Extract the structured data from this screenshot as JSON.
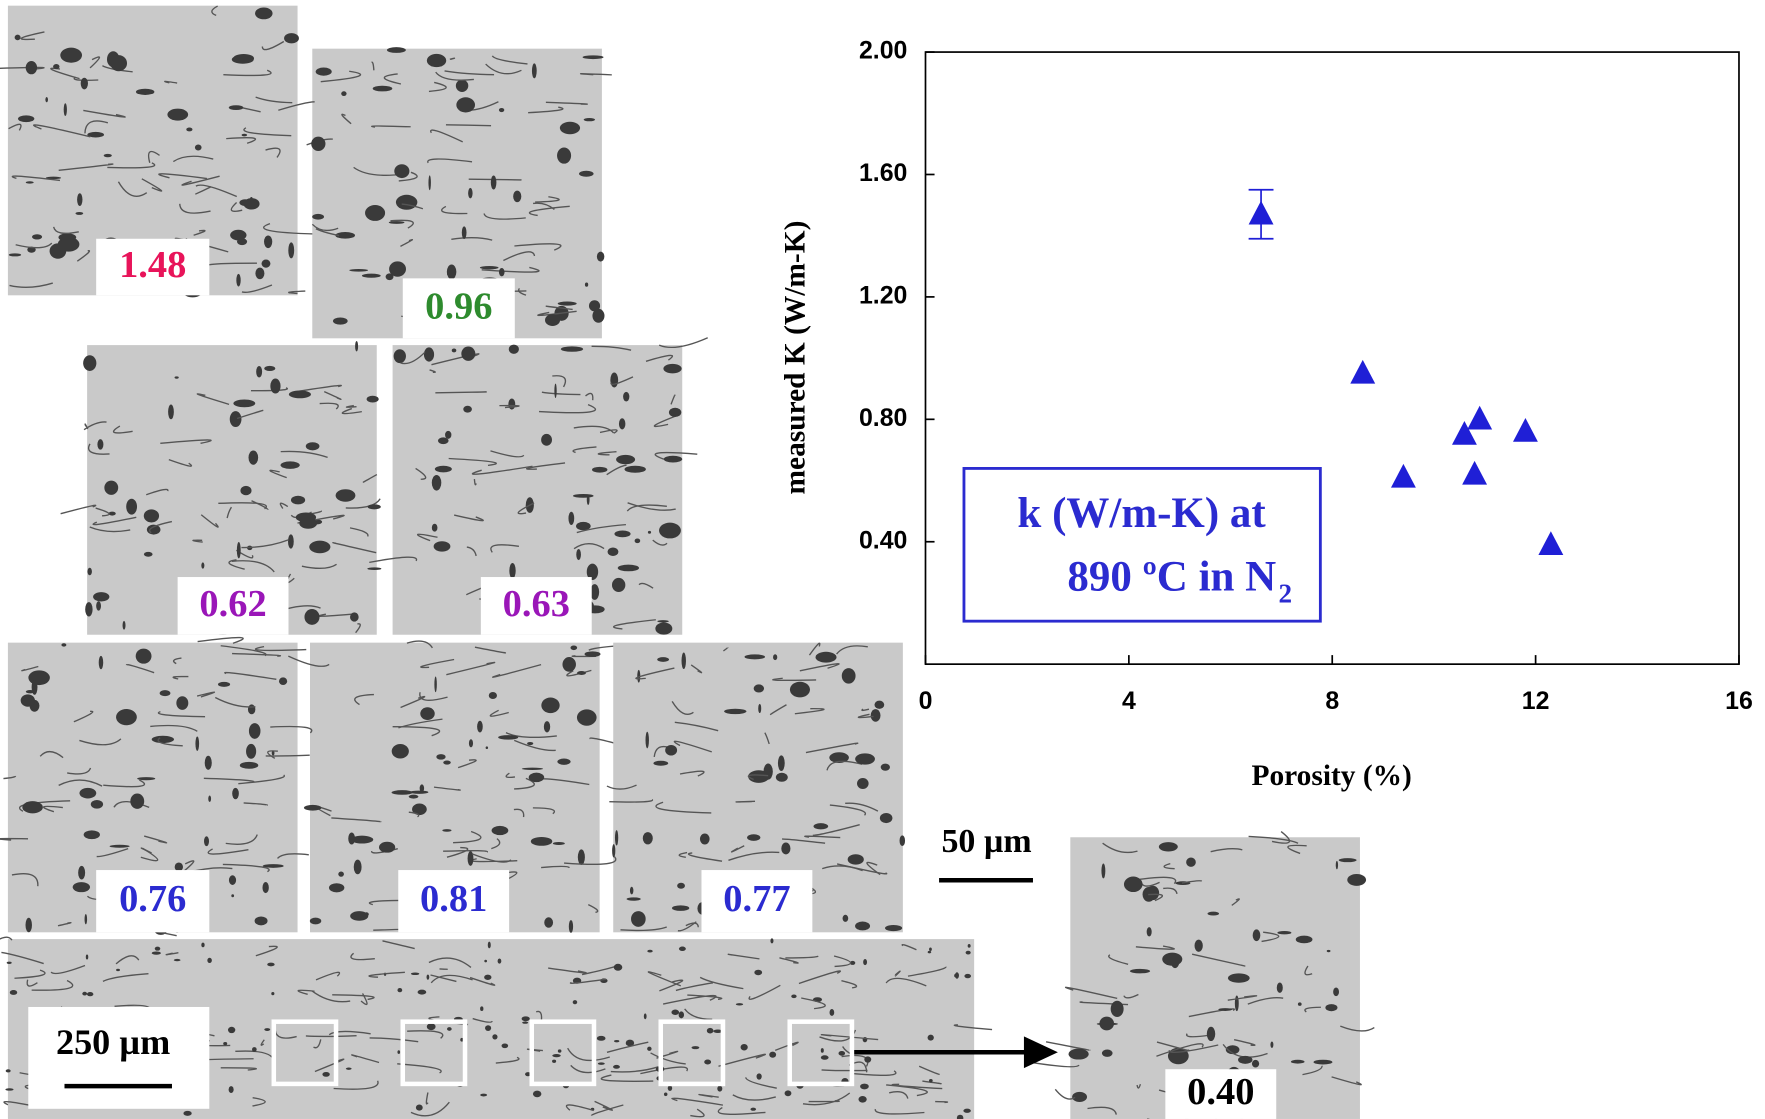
{
  "chart_data": {
    "type": "scatter",
    "ylabel": "measured K (W/m-K)",
    "xlabel": "Porosity (%)",
    "x": [
      6.6,
      8.6,
      9.4,
      10.6,
      10.9,
      10.8,
      11.8,
      12.3
    ],
    "values": [
      1.47,
      0.95,
      0.61,
      0.75,
      0.8,
      0.62,
      0.76,
      0.39
    ],
    "errors": [
      0.08,
      null,
      null,
      null,
      null,
      null,
      null,
      null
    ],
    "color": "#1f1fd6",
    "xlim": [
      0,
      16
    ],
    "xticks": [
      0,
      4,
      8,
      12,
      16
    ],
    "ylim": [
      0,
      2
    ],
    "yticks": [
      {
        "value": 0.4,
        "label": "0.40"
      },
      {
        "value": 0.8,
        "label": "0.80"
      },
      {
        "value": 1.2,
        "label": "1.20"
      },
      {
        "value": 1.6,
        "label": "1.60"
      },
      {
        "value": 2,
        "label": "2.00"
      }
    ],
    "annotation": {
      "line1": "k (W/m-K) at",
      "line2": "890 ºC in N",
      "subscript": "2"
    }
  },
  "micrographs": [
    {
      "label": "1.48",
      "color": "#e8145a"
    },
    {
      "label": "0.96",
      "color": "#2e8b2e"
    },
    {
      "label": "0.62",
      "color": "#9a16b8"
    },
    {
      "label": "0.63",
      "color": "#9a16b8"
    },
    {
      "label": "0.76",
      "color": "#2b2bd0"
    },
    {
      "label": "0.81",
      "color": "#2b2bd0"
    },
    {
      "label": "0.77",
      "color": "#2b2bd0"
    },
    {
      "label": "0.40",
      "color": "#000000"
    }
  ],
  "scale_bars": [
    "250 µm",
    "50 µm"
  ]
}
